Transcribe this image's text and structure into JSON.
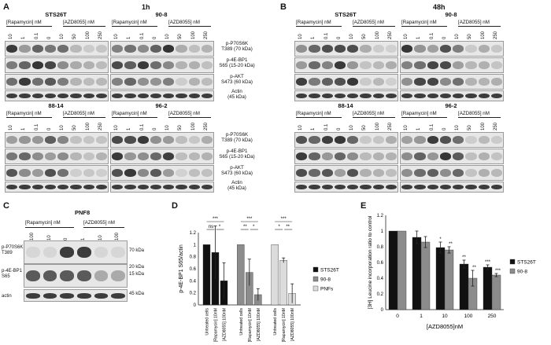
{
  "panel_A": {
    "letter": "A",
    "time": "1h",
    "blocks": [
      {
        "cell_line": "STS26T",
        "rapa_label": "[Rapamycin] nM",
        "azd_label": "[AZD8055] nM",
        "ticks": [
          "10",
          "1",
          "0.1",
          "0",
          "10",
          "50",
          "100",
          "250"
        ]
      },
      {
        "cell_line": "90-8",
        "rapa_label": "[Rapamycin] nM",
        "azd_label": "[AZD8055] nM",
        "ticks": [
          "10",
          "1",
          "0.1",
          "0",
          "10",
          "50",
          "100",
          "250"
        ]
      },
      {
        "cell_line": "88-14",
        "rapa_label": "[Rapamycin] nM",
        "azd_label": "[AZD8055] nM",
        "ticks": [
          "10",
          "1",
          "0.1",
          "0",
          "10",
          "50",
          "100",
          "250"
        ]
      },
      {
        "cell_line": "96-2",
        "rapa_label": "[Rapamycin] nM",
        "azd_label": "[AZD8055] nM",
        "ticks": [
          "10",
          "1",
          "0.1",
          "0",
          "10",
          "50",
          "100",
          "250"
        ]
      }
    ],
    "rows": [
      {
        "l1": "p-P70S6K",
        "l2": "T389 (70 kDa)"
      },
      {
        "l1": "p-4E-BP1",
        "l2": "S65 (15-20 kDa)"
      },
      {
        "l1": "p-AKT",
        "l2": "S473 (60 kDa)"
      },
      {
        "l1": "Actin",
        "l2": "(45 kDa)"
      }
    ]
  },
  "panel_B": {
    "letter": "B",
    "time": "48h",
    "blocks": [
      {
        "cell_line": "STS26T",
        "rapa_label": "[Rapamycin] nM",
        "azd_label": "[AZD8055] nM",
        "ticks": [
          "10",
          "1",
          "0.1",
          "0",
          "10",
          "50",
          "100",
          "250"
        ]
      },
      {
        "cell_line": "90-8",
        "rapa_label": "[Rapamycin] nM",
        "azd_label": "[AZD8055] nM",
        "ticks": [
          "10",
          "1",
          "0.1",
          "0",
          "10",
          "50",
          "100",
          "250"
        ]
      },
      {
        "cell_line": "88-14",
        "rapa_label": "[Rapamycin] nM",
        "azd_label": "[AZD8055] nM",
        "ticks": [
          "10",
          "1",
          "0.1",
          "0",
          "10",
          "50",
          "100",
          "250"
        ]
      },
      {
        "cell_line": "96-2",
        "rapa_label": "[Rapamycin] nM",
        "azd_label": "[AZD8055] nM",
        "ticks": [
          "10",
          "1",
          "0.1",
          "0",
          "10",
          "50",
          "100",
          "250"
        ]
      }
    ]
  },
  "panel_C": {
    "letter": "C",
    "cell_line": "PNF8",
    "rapa_label": "[Rapamycin] nM",
    "azd_label": "[AZD8055] nM",
    "ticks": [
      "100",
      "10",
      "0",
      "1",
      "10",
      "100"
    ],
    "left_rows": [
      {
        "l1": "p-P70S6K",
        "l2": "T389"
      },
      {
        "l1": "p-4E-BP1",
        "l2": "S65"
      },
      {
        "l1": "actin",
        "l2": ""
      }
    ],
    "kda": [
      "70 kDa",
      "20 kDa",
      "15 kDa",
      "45 kDa"
    ]
  },
  "panel_D": {
    "letter": "D",
    "chart_data": {
      "type": "bar",
      "ylabel": "p-4E-BP1 S65/actin",
      "ylim": [
        0,
        1.2
      ],
      "yticks": [
        0,
        0.2,
        0.4,
        0.6,
        0.8,
        1,
        1.2
      ],
      "categories": [
        "Untreated cells",
        "[Rapamycin] 10nM",
        "[AZD8055] 100nM"
      ],
      "series": [
        {
          "name": "STS26T",
          "color": "#111111",
          "values": [
            1.0,
            0.87,
            0.4
          ],
          "errors": [
            0,
            0.44,
            0.3
          ]
        },
        {
          "name": "90-8",
          "color": "#8c8c8c",
          "values": [
            1.0,
            0.54,
            0.17
          ],
          "errors": [
            0,
            0.22,
            0.1
          ]
        },
        {
          "name": "PNFs",
          "color": "#dcdcdc",
          "values": [
            1.0,
            0.74,
            0.19
          ],
          "errors": [
            0,
            0.04,
            0.16
          ]
        }
      ],
      "significance": [
        {
          "series": "STS26T",
          "top": "***",
          "left": "ns",
          "right": "*"
        },
        {
          "series": "90-8",
          "top": "***",
          "left": "**",
          "right": "*"
        },
        {
          "series": "PNFs",
          "top": "***",
          "left": "*",
          "right": "**"
        }
      ]
    }
  },
  "panel_E": {
    "letter": "E",
    "chart_data": {
      "type": "bar",
      "xlabel": "[AZD8055]nM",
      "ylabel": "[3H] Leucine incorporation ratio to control",
      "ylim": [
        0,
        1.2
      ],
      "yticks": [
        0,
        0.2,
        0.4,
        0.6,
        0.8,
        1,
        1.2
      ],
      "categories": [
        "0",
        "1",
        "10",
        "100",
        "250"
      ],
      "series": [
        {
          "name": "STS26T",
          "color": "#111111",
          "values": [
            1.0,
            0.92,
            0.79,
            0.58,
            0.54
          ],
          "errors": [
            0,
            0.08,
            0.07,
            0.05,
            0.03
          ],
          "stars": [
            "",
            "",
            "*",
            "**",
            "***"
          ]
        },
        {
          "name": "90-8",
          "color": "#8c8c8c",
          "values": [
            1.0,
            0.86,
            0.76,
            0.4,
            0.44
          ],
          "errors": [
            0,
            0.07,
            0.04,
            0.1,
            0.02
          ],
          "stars": [
            "",
            "",
            "**",
            "**",
            "***"
          ]
        }
      ]
    }
  }
}
